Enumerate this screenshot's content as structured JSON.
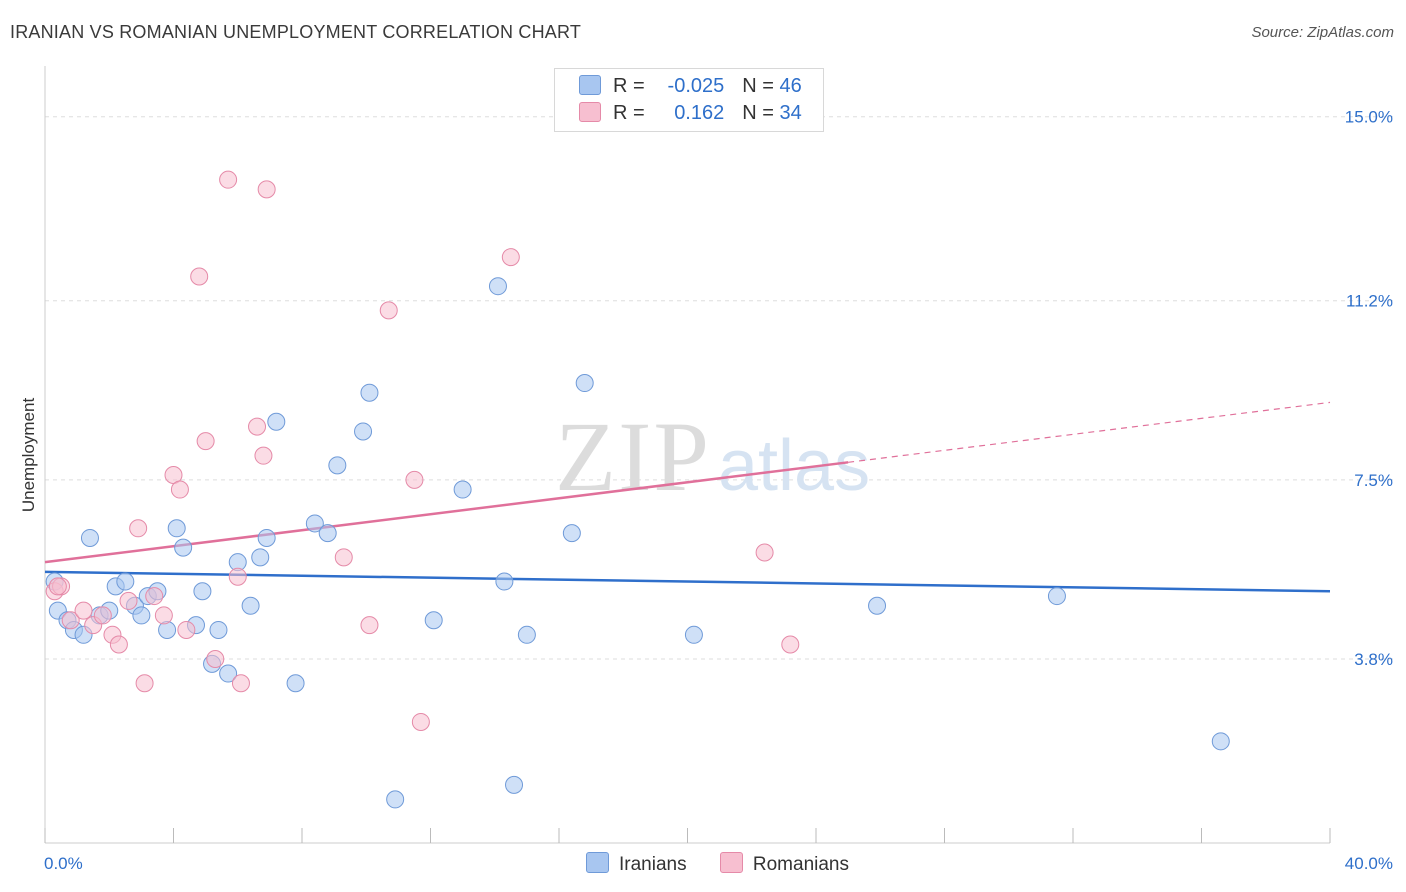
{
  "title": "IRANIAN VS ROMANIAN UNEMPLOYMENT CORRELATION CHART",
  "source": "Source: ZipAtlas.com",
  "watermark": {
    "zip": "ZIP",
    "atlas": "atlas"
  },
  "legend": {
    "rows": [
      {
        "r_label": "R =",
        "r_value": "-0.025",
        "n_label": "N =",
        "n_value": "46",
        "color": "#a8c6f0",
        "border": "#6f9ad8"
      },
      {
        "r_label": "R =",
        "r_value": "0.162",
        "n_label": "N =",
        "n_value": "34",
        "color": "#f7bfd0",
        "border": "#e58aa8"
      }
    ]
  },
  "bottom_legend": [
    {
      "label": "Iranians",
      "color": "#a8c6f0",
      "border": "#6f9ad8"
    },
    {
      "label": "Romanians",
      "color": "#f7bfd0",
      "border": "#e58aa8"
    }
  ],
  "chart_data": {
    "type": "scatter",
    "title": "IRANIAN VS ROMANIAN UNEMPLOYMENT CORRELATION CHART",
    "xlabel": "",
    "ylabel": "Unemployment",
    "xlim": [
      0,
      40
    ],
    "ylim": [
      0,
      15.8
    ],
    "x_tick_labels": [
      "0.0%",
      "40.0%"
    ],
    "y_ticks": [
      3.8,
      7.5,
      11.2,
      15.0
    ],
    "y_tick_labels": [
      "3.8%",
      "7.5%",
      "11.2%",
      "15.0%"
    ],
    "series": [
      {
        "name": "Iranians",
        "color": "#a8c6f0",
        "stroke": "#6f9ad8",
        "line_color": "#2f6fcb",
        "trend": {
          "x": [
            0,
            40
          ],
          "y": [
            5.6,
            5.2
          ],
          "dashed_from": null
        },
        "points": [
          [
            0.3,
            5.4
          ],
          [
            0.4,
            4.8
          ],
          [
            0.7,
            4.6
          ],
          [
            0.9,
            4.4
          ],
          [
            1.2,
            4.3
          ],
          [
            1.4,
            6.3
          ],
          [
            1.7,
            4.7
          ],
          [
            2.0,
            4.8
          ],
          [
            2.2,
            5.3
          ],
          [
            2.5,
            5.4
          ],
          [
            2.8,
            4.9
          ],
          [
            3.0,
            4.7
          ],
          [
            3.2,
            5.1
          ],
          [
            3.5,
            5.2
          ],
          [
            3.8,
            4.4
          ],
          [
            4.1,
            6.5
          ],
          [
            4.3,
            6.1
          ],
          [
            4.7,
            4.5
          ],
          [
            4.9,
            5.2
          ],
          [
            5.2,
            3.7
          ],
          [
            5.4,
            4.4
          ],
          [
            5.7,
            3.5
          ],
          [
            6.0,
            5.8
          ],
          [
            6.4,
            4.9
          ],
          [
            6.7,
            5.9
          ],
          [
            6.9,
            6.3
          ],
          [
            7.2,
            8.7
          ],
          [
            7.8,
            3.3
          ],
          [
            8.4,
            6.6
          ],
          [
            8.8,
            6.4
          ],
          [
            9.1,
            7.8
          ],
          [
            9.9,
            8.5
          ],
          [
            10.1,
            9.3
          ],
          [
            10.9,
            0.9
          ],
          [
            12.1,
            4.6
          ],
          [
            13.0,
            7.3
          ],
          [
            14.1,
            11.5
          ],
          [
            14.3,
            5.4
          ],
          [
            14.6,
            1.2
          ],
          [
            15.0,
            4.3
          ],
          [
            16.4,
            6.4
          ],
          [
            16.8,
            9.5
          ],
          [
            20.2,
            4.3
          ],
          [
            25.9,
            4.9
          ],
          [
            31.5,
            5.1
          ],
          [
            36.6,
            2.1
          ]
        ]
      },
      {
        "name": "Romanians",
        "color": "#f7bfd0",
        "stroke": "#e58aa8",
        "line_color": "#e0709a",
        "trend": {
          "x": [
            0,
            40
          ],
          "y": [
            5.8,
            9.1
          ],
          "dashed_from": 25
        },
        "points": [
          [
            0.3,
            5.2
          ],
          [
            0.5,
            5.3
          ],
          [
            0.8,
            4.6
          ],
          [
            1.2,
            4.8
          ],
          [
            1.5,
            4.5
          ],
          [
            1.8,
            4.7
          ],
          [
            2.1,
            4.3
          ],
          [
            2.3,
            4.1
          ],
          [
            2.6,
            5.0
          ],
          [
            2.9,
            6.5
          ],
          [
            3.1,
            3.3
          ],
          [
            3.4,
            5.1
          ],
          [
            3.7,
            4.7
          ],
          [
            4.0,
            7.6
          ],
          [
            4.2,
            7.3
          ],
          [
            4.4,
            4.4
          ],
          [
            4.8,
            11.7
          ],
          [
            5.0,
            8.3
          ],
          [
            5.3,
            3.8
          ],
          [
            5.7,
            13.7
          ],
          [
            6.0,
            5.5
          ],
          [
            6.1,
            3.3
          ],
          [
            6.6,
            8.6
          ],
          [
            6.8,
            8.0
          ],
          [
            6.9,
            13.5
          ],
          [
            9.3,
            5.9
          ],
          [
            10.1,
            4.5
          ],
          [
            10.7,
            11.0
          ],
          [
            11.5,
            7.5
          ],
          [
            11.7,
            2.5
          ],
          [
            14.5,
            12.1
          ],
          [
            22.4,
            6.0
          ],
          [
            23.2,
            4.1
          ],
          [
            0.4,
            5.3
          ]
        ]
      }
    ]
  }
}
